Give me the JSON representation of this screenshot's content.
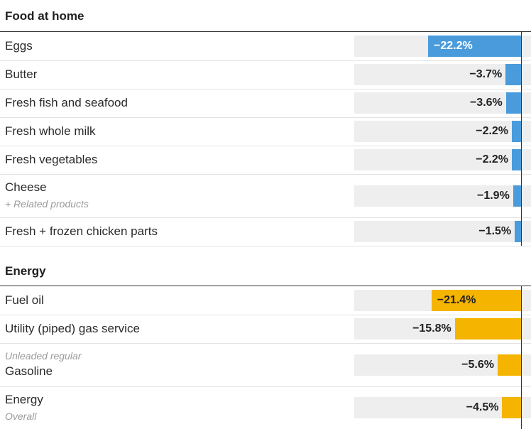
{
  "chart_data": {
    "type": "bar",
    "orientation": "horizontal",
    "xlim": [
      -22.2,
      0
    ],
    "sections": [
      {
        "title": "Food at home",
        "color": "#4a9bdb",
        "rows": [
          {
            "label": "Eggs",
            "note": "",
            "value": -22.2,
            "value_label": "−22.2%"
          },
          {
            "label": "Butter",
            "note": "",
            "value": -3.7,
            "value_label": "−3.7%"
          },
          {
            "label": "Fresh fish and seafood",
            "note": "",
            "value": -3.6,
            "value_label": "−3.6%"
          },
          {
            "label": "Fresh whole milk",
            "note": "",
            "value": -2.2,
            "value_label": "−2.2%"
          },
          {
            "label": "Fresh vegetables",
            "note": "",
            "value": -2.2,
            "value_label": "−2.2%"
          },
          {
            "label": "Cheese",
            "note": "+ Related products",
            "note_position": "below",
            "value": -1.9,
            "value_label": "−1.9%"
          },
          {
            "label": "Fresh + frozen chicken parts",
            "note": "",
            "value": -1.5,
            "value_label": "−1.5%"
          }
        ]
      },
      {
        "title": "Energy",
        "color": "#f5b400",
        "rows": [
          {
            "label": "Fuel oil",
            "note": "",
            "value": -21.4,
            "value_label": "−21.4%"
          },
          {
            "label": "Utility (piped) gas service",
            "note": "",
            "value": -15.8,
            "value_label": "−15.8%"
          },
          {
            "label": "Gasoline",
            "note": "Unleaded regular",
            "note_position": "above",
            "value": -5.6,
            "value_label": "−5.6%"
          },
          {
            "label": "Energy",
            "note": "Overall",
            "note_position": "below",
            "value": -4.5,
            "value_label": "−4.5%"
          }
        ]
      }
    ]
  }
}
